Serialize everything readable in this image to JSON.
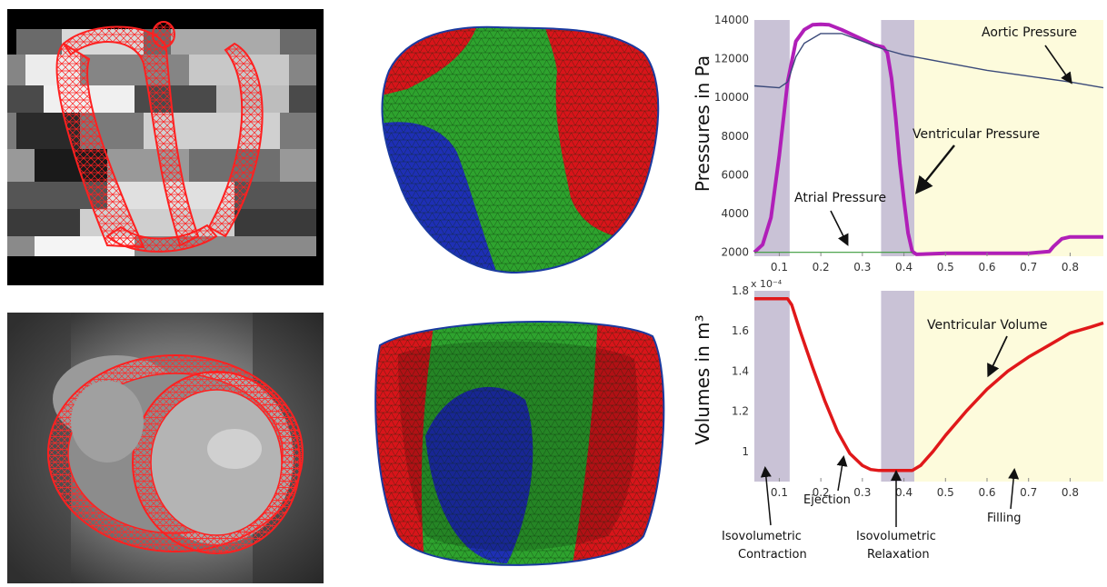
{
  "colors": {
    "phase_shade": "#c9c2d6",
    "filling_shade": "#fdfbdc",
    "ventricular_pressure": "#b01fb8",
    "aortic_pressure": "#3b4a7a",
    "atrial_pressure": "#3a9a3a",
    "volume": "#e0181a",
    "mesh_red": "#d8141a",
    "mesh_green": "#2ea32e",
    "mesh_blue": "#1e2fb5"
  },
  "images": {
    "mri_long_axis": "grayscale MRI long-axis slice with red tetrahedral mesh overlay",
    "mri_short_axis": "grayscale MRI short-axis slice with red tetrahedral mesh overlay",
    "mesh_outer_view": "left ventricle surface mesh colored red/green/blue",
    "mesh_inner_view": "left ventricle inner surface mesh colored red/green/blue"
  },
  "chart_data": [
    {
      "type": "line",
      "ylabel": "Pressures in Pa",
      "xlim": [
        0.04,
        0.88
      ],
      "ylim": [
        1800,
        14000
      ],
      "xticks": [
        "0.1",
        "0.2",
        "0.3",
        "0.4",
        "0.5",
        "0.6",
        "0.7",
        "0.8"
      ],
      "yticks": [
        "2000",
        "4000",
        "6000",
        "8000",
        "10000",
        "12000",
        "14000"
      ],
      "phase_bands": [
        [
          0.04,
          0.125
        ],
        [
          0.345,
          0.425
        ]
      ],
      "filling_band": [
        0.425,
        0.88
      ],
      "series": [
        {
          "name": "Ventricular Pressure",
          "x": [
            0.04,
            0.06,
            0.08,
            0.1,
            0.12,
            0.14,
            0.16,
            0.18,
            0.2,
            0.22,
            0.25,
            0.3,
            0.33,
            0.35,
            0.36,
            0.37,
            0.38,
            0.39,
            0.4,
            0.41,
            0.42,
            0.43,
            0.5,
            0.6,
            0.7,
            0.75,
            0.76,
            0.78,
            0.8,
            0.85,
            0.88
          ],
          "y": [
            2000,
            2400,
            3800,
            7000,
            10800,
            12900,
            13500,
            13750,
            13780,
            13750,
            13500,
            13000,
            12700,
            12600,
            12300,
            11000,
            9000,
            6600,
            4700,
            3000,
            2050,
            1900,
            1950,
            1950,
            1950,
            2050,
            2300,
            2700,
            2800,
            2800,
            2800
          ]
        },
        {
          "name": "Aortic Pressure",
          "x": [
            0.04,
            0.1,
            0.12,
            0.14,
            0.16,
            0.2,
            0.25,
            0.3,
            0.35,
            0.4,
            0.5,
            0.6,
            0.7,
            0.8,
            0.88
          ],
          "y": [
            10600,
            10500,
            10800,
            12100,
            12800,
            13300,
            13300,
            12900,
            12500,
            12200,
            11800,
            11400,
            11100,
            10800,
            10500
          ]
        },
        {
          "name": "Atrial Pressure",
          "x": [
            0.04,
            0.42
          ],
          "y": [
            2000,
            2000
          ]
        }
      ],
      "annotations": {
        "aortic": "Aortic Pressure",
        "ventricular": "Ventricular Pressure",
        "atrial": "Atrial Pressure"
      }
    },
    {
      "type": "line",
      "ylabel": "Volumes in m³",
      "scale_note": "x 10⁻⁴",
      "xlim": [
        0.04,
        0.88
      ],
      "ylim": [
        0.85,
        1.8
      ],
      "xticks": [
        "0.1",
        "0.2",
        "0.3",
        "0.4",
        "0.5",
        "0.6",
        "0.7",
        "0.8"
      ],
      "yticks": [
        "1",
        "1.2",
        "1.4",
        "1.6",
        "1.8"
      ],
      "phase_bands": [
        [
          0.04,
          0.125
        ],
        [
          0.345,
          0.425
        ]
      ],
      "filling_band": [
        0.425,
        0.88
      ],
      "series": [
        {
          "name": "Ventricular Volume",
          "x": [
            0.04,
            0.08,
            0.12,
            0.13,
            0.15,
            0.18,
            0.21,
            0.24,
            0.27,
            0.3,
            0.32,
            0.34,
            0.36,
            0.38,
            0.42,
            0.44,
            0.47,
            0.5,
            0.55,
            0.6,
            0.65,
            0.7,
            0.75,
            0.8,
            0.85,
            0.88
          ],
          "y": [
            1.76,
            1.76,
            1.76,
            1.73,
            1.6,
            1.42,
            1.25,
            1.1,
            0.99,
            0.93,
            0.91,
            0.905,
            0.905,
            0.905,
            0.905,
            0.93,
            1.0,
            1.08,
            1.2,
            1.31,
            1.4,
            1.47,
            1.53,
            1.59,
            1.62,
            1.64
          ]
        }
      ],
      "annotations": {
        "volume": "Ventricular Volume"
      },
      "phase_labels": {
        "iso_contraction_1": "Isovolumetric",
        "iso_contraction_2": "Contraction",
        "ejection": "Ejection",
        "iso_relaxation_1": "Isovolumetric",
        "iso_relaxation_2": "Relaxation",
        "filling": "Filling"
      }
    }
  ]
}
